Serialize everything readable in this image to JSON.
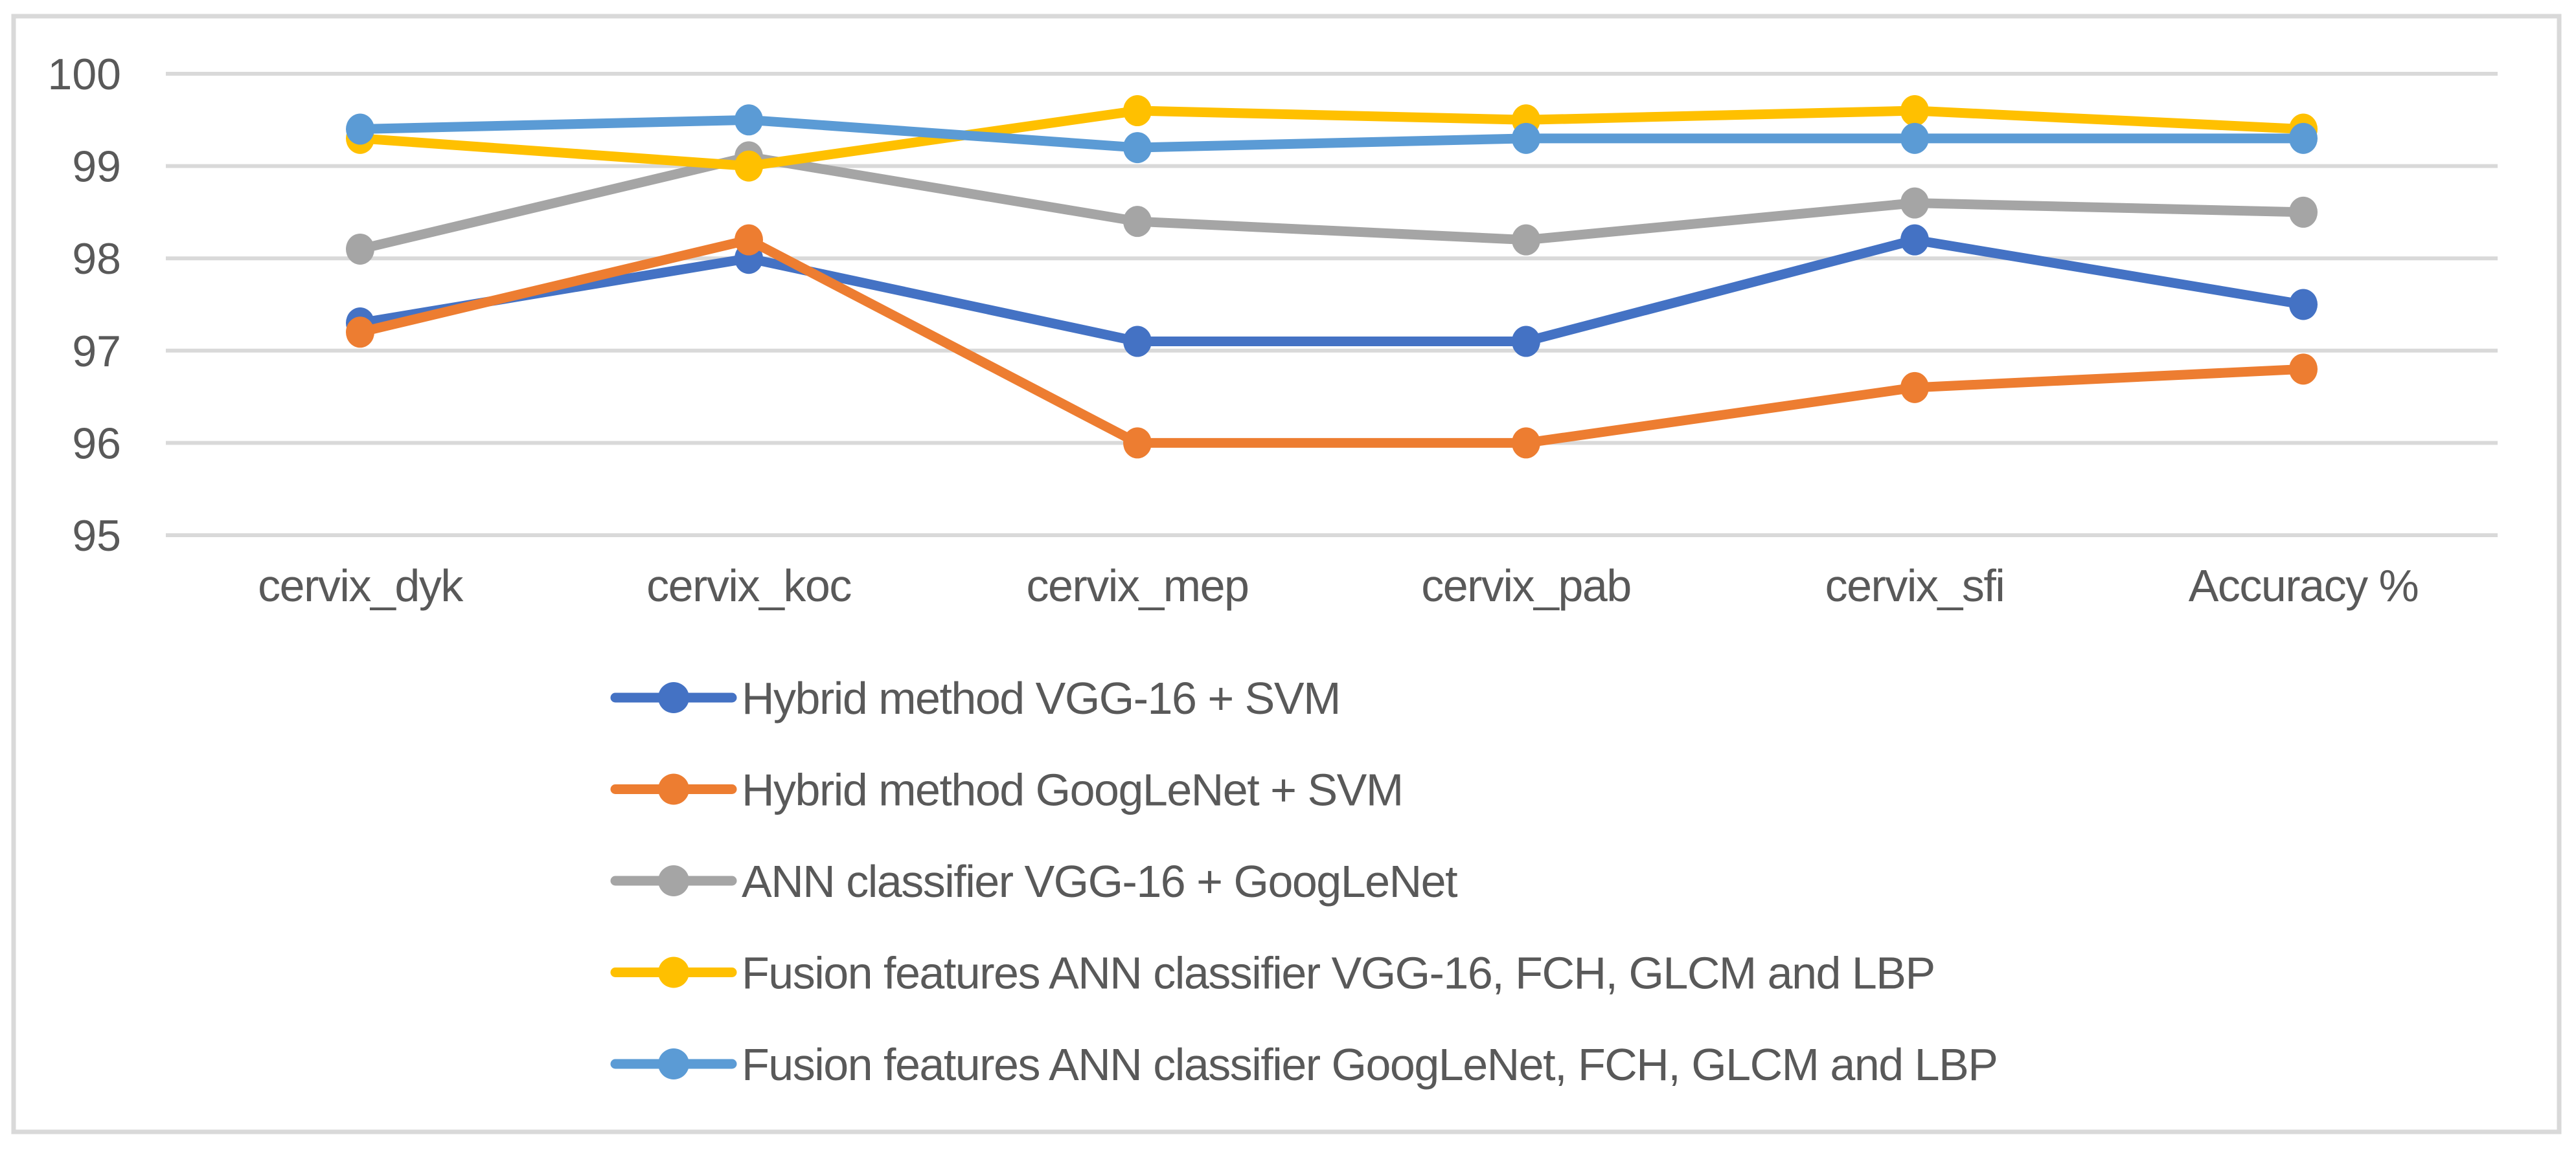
{
  "chart": {
    "background": "#FFFFFF",
    "border_color": "#D9D9D9",
    "gridline_color": "#D9D9D9",
    "text_color": "#595959"
  },
  "chart_data": {
    "type": "line",
    "title": "",
    "xlabel": "",
    "ylabel": "",
    "categories": [
      "cervix_dyk",
      "cervix_koc",
      "cervix_mep",
      "cervix_pab",
      "cervix_sfi",
      "Accuracy %"
    ],
    "yticks": [
      "100",
      "99",
      "98",
      "97",
      "96",
      "95"
    ],
    "ylim": [
      95,
      100
    ],
    "grid": true,
    "legend_position": "bottom",
    "series": [
      {
        "name": "Hybrid method VGG-16 + SVM",
        "color": "#4472C4",
        "values": [
          97.3,
          98.0,
          97.1,
          97.1,
          98.2,
          97.5
        ]
      },
      {
        "name": "Hybrid method GoogLeNet + SVM",
        "color": "#ED7D31",
        "values": [
          97.2,
          98.2,
          96.0,
          96.0,
          96.6,
          96.8
        ]
      },
      {
        "name": "ANN classifier VGG-16 + GoogLeNet",
        "color": "#A5A5A5",
        "values": [
          98.1,
          99.1,
          98.4,
          98.2,
          98.6,
          98.5
        ]
      },
      {
        "name": "Fusion features ANN classifier VGG-16, FCH, GLCM and LBP",
        "color": "#FFC000",
        "values": [
          99.3,
          99.0,
          99.6,
          99.5,
          99.6,
          99.4
        ]
      },
      {
        "name": "Fusion features ANN classifier GoogLeNet, FCH, GLCM and LBP",
        "color": "#5B9BD5",
        "values": [
          99.4,
          99.5,
          99.2,
          99.3,
          99.3,
          99.3
        ]
      }
    ]
  }
}
